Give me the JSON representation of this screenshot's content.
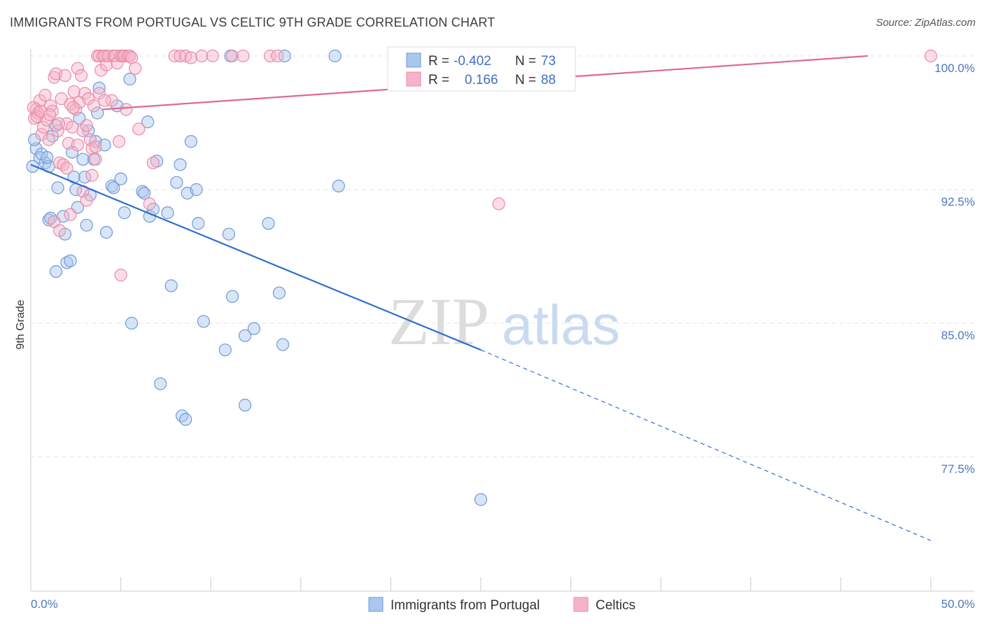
{
  "header": {
    "title": "IMMIGRANTS FROM PORTUGAL VS CELTIC 9TH GRADE CORRELATION CHART",
    "source": "Source: ZipAtlas.com"
  },
  "watermark": {
    "zip": "ZIP",
    "atlas": "atlas"
  },
  "legend": {
    "rows": [
      {
        "r_label": "R =",
        "r_value": "-0.402",
        "n_label": "N =",
        "n_value": "73",
        "color": "#a9c6ee"
      },
      {
        "r_label": "R =",
        "r_value": "0.166",
        "n_label": "N =",
        "n_value": "88",
        "color": "#f6b3c8"
      }
    ]
  },
  "chart_data": {
    "type": "scatter",
    "title": "IMMIGRANTS FROM PORTUGAL VS CELTIC 9TH GRADE CORRELATION CHART",
    "xlabel": "",
    "ylabel": "9th Grade",
    "xlim": [
      0,
      50
    ],
    "ylim": [
      72.0,
      101.5
    ],
    "x_tick_labels": [
      "0.0%",
      "50.0%"
    ],
    "y_ticks": [
      77.5,
      85.0,
      92.5,
      100.0
    ],
    "y_tick_labels": [
      "77.5%",
      "85.0%",
      "92.5%",
      "100.0%"
    ],
    "grid": true,
    "legend_position": "bottom",
    "series": [
      {
        "name": "Immigrants from Portugal",
        "color": "#a9c6ee",
        "stroke": "#6f9ad8",
        "trend": {
          "x0": 0,
          "y0": 93.9,
          "x1": 25,
          "y1": 83.5,
          "dashed_to_x": 50,
          "dashed_to_y": 72.8,
          "color": "#2e6fcc"
        },
        "points": [
          [
            0.3,
            94.8
          ],
          [
            0.5,
            94.3
          ],
          [
            0.8,
            94.0
          ],
          [
            1.0,
            93.8
          ],
          [
            1.2,
            95.5
          ],
          [
            1.4,
            96.1
          ],
          [
            1.5,
            92.6
          ],
          [
            1.0,
            90.8
          ],
          [
            1.1,
            90.9
          ],
          [
            1.8,
            91.0
          ],
          [
            1.9,
            90.0
          ],
          [
            2.0,
            88.4
          ],
          [
            2.2,
            88.5
          ],
          [
            1.4,
            87.9
          ],
          [
            2.3,
            94.6
          ],
          [
            2.4,
            93.2
          ],
          [
            2.5,
            92.5
          ],
          [
            2.6,
            91.5
          ],
          [
            2.7,
            96.5
          ],
          [
            2.9,
            94.2
          ],
          [
            3.0,
            93.2
          ],
          [
            3.2,
            95.8
          ],
          [
            3.1,
            90.5
          ],
          [
            3.3,
            92.2
          ],
          [
            3.5,
            94.2
          ],
          [
            3.6,
            95.2
          ],
          [
            3.8,
            98.2
          ],
          [
            3.7,
            96.8
          ],
          [
            4.1,
            95.0
          ],
          [
            4.2,
            90.1
          ],
          [
            4.5,
            92.7
          ],
          [
            4.6,
            92.6
          ],
          [
            4.8,
            97.2
          ],
          [
            5.0,
            93.1
          ],
          [
            5.2,
            91.2
          ],
          [
            5.5,
            98.7
          ],
          [
            5.6,
            85.0
          ],
          [
            6.2,
            92.4
          ],
          [
            6.3,
            92.3
          ],
          [
            6.5,
            96.3
          ],
          [
            6.6,
            91.0
          ],
          [
            6.8,
            91.4
          ],
          [
            7.0,
            94.1
          ],
          [
            7.2,
            81.6
          ],
          [
            7.6,
            91.2
          ],
          [
            7.8,
            87.1
          ],
          [
            8.1,
            92.9
          ],
          [
            8.3,
            93.9
          ],
          [
            8.4,
            79.8
          ],
          [
            8.6,
            79.6
          ],
          [
            8.7,
            92.3
          ],
          [
            8.9,
            95.2
          ],
          [
            9.2,
            92.5
          ],
          [
            9.3,
            90.6
          ],
          [
            9.6,
            85.1
          ],
          [
            10.8,
            83.5
          ],
          [
            11.0,
            90.0
          ],
          [
            11.2,
            86.5
          ],
          [
            11.9,
            84.3
          ],
          [
            11.9,
            80.4
          ],
          [
            12.4,
            84.7
          ],
          [
            13.2,
            90.6
          ],
          [
            13.8,
            86.7
          ],
          [
            14.0,
            83.8
          ],
          [
            11.1,
            100.0
          ],
          [
            14.1,
            100.0
          ],
          [
            16.9,
            100.0
          ],
          [
            17.1,
            92.7
          ],
          [
            25.0,
            75.1
          ],
          [
            0.1,
            93.8
          ],
          [
            0.2,
            95.3
          ],
          [
            0.6,
            94.5
          ],
          [
            0.9,
            94.3
          ]
        ]
      },
      {
        "name": "Celtics",
        "color": "#f6b3c8",
        "stroke": "#e98aa8",
        "trend": {
          "x0": 4,
          "y0": 97.0,
          "x1": 46.5,
          "y1": 100.0,
          "color": "#e06990"
        },
        "points": [
          [
            0.2,
            96.5
          ],
          [
            0.3,
            97.0
          ],
          [
            0.4,
            96.8
          ],
          [
            0.5,
            97.5
          ],
          [
            0.6,
            95.6
          ],
          [
            0.7,
            96.0
          ],
          [
            0.8,
            97.8
          ],
          [
            0.9,
            96.4
          ],
          [
            1.0,
            95.3
          ],
          [
            1.1,
            97.2
          ],
          [
            1.2,
            96.9
          ],
          [
            1.3,
            98.8
          ],
          [
            1.4,
            99.0
          ],
          [
            1.5,
            95.8
          ],
          [
            1.6,
            94.0
          ],
          [
            1.7,
            97.6
          ],
          [
            1.8,
            93.9
          ],
          [
            1.9,
            98.9
          ],
          [
            2.0,
            96.2
          ],
          [
            2.1,
            95.1
          ],
          [
            2.2,
            97.3
          ],
          [
            2.3,
            96.0
          ],
          [
            2.4,
            98.0
          ],
          [
            2.5,
            97.0
          ],
          [
            2.6,
            99.3
          ],
          [
            2.7,
            97.4
          ],
          [
            2.8,
            98.9
          ],
          [
            2.9,
            95.8
          ],
          [
            3.0,
            97.9
          ],
          [
            3.1,
            96.1
          ],
          [
            3.2,
            97.6
          ],
          [
            3.3,
            95.3
          ],
          [
            3.4,
            94.8
          ],
          [
            3.5,
            97.2
          ],
          [
            3.6,
            94.9
          ],
          [
            3.7,
            100.0
          ],
          [
            3.8,
            100.0
          ],
          [
            3.9,
            99.2
          ],
          [
            4.0,
            100.0
          ],
          [
            4.1,
            100.0
          ],
          [
            4.2,
            99.5
          ],
          [
            4.3,
            100.0
          ],
          [
            4.5,
            97.5
          ],
          [
            4.6,
            100.0
          ],
          [
            4.7,
            100.0
          ],
          [
            4.8,
            99.6
          ],
          [
            4.9,
            95.2
          ],
          [
            5.0,
            100.0
          ],
          [
            5.1,
            100.0
          ],
          [
            5.2,
            100.0
          ],
          [
            5.3,
            97.0
          ],
          [
            5.4,
            100.0
          ],
          [
            5.5,
            100.0
          ],
          [
            5.6,
            99.9
          ],
          [
            5.8,
            99.3
          ],
          [
            6.0,
            95.9
          ],
          [
            6.8,
            94.0
          ],
          [
            6.6,
            91.7
          ],
          [
            8.0,
            100.0
          ],
          [
            8.3,
            100.0
          ],
          [
            8.6,
            100.0
          ],
          [
            8.9,
            99.9
          ],
          [
            9.5,
            100.0
          ],
          [
            10.1,
            100.0
          ],
          [
            11.2,
            100.0
          ],
          [
            11.8,
            100.0
          ],
          [
            13.3,
            100.0
          ],
          [
            13.7,
            100.0
          ],
          [
            1.3,
            90.7
          ],
          [
            1.6,
            90.2
          ],
          [
            2.0,
            93.7
          ],
          [
            2.2,
            91.1
          ],
          [
            2.6,
            95.0
          ],
          [
            2.9,
            92.4
          ],
          [
            3.1,
            91.9
          ],
          [
            3.4,
            93.3
          ],
          [
            3.6,
            94.2
          ],
          [
            3.8,
            97.9
          ],
          [
            4.1,
            97.5
          ],
          [
            5.0,
            87.7
          ],
          [
            26.0,
            91.7
          ],
          [
            0.15,
            97.1
          ],
          [
            0.35,
            96.6
          ],
          [
            0.55,
            96.9
          ],
          [
            1.05,
            96.7
          ],
          [
            1.55,
            96.2
          ],
          [
            2.35,
            97.1
          ],
          [
            50.0,
            100.0
          ]
        ]
      }
    ]
  }
}
